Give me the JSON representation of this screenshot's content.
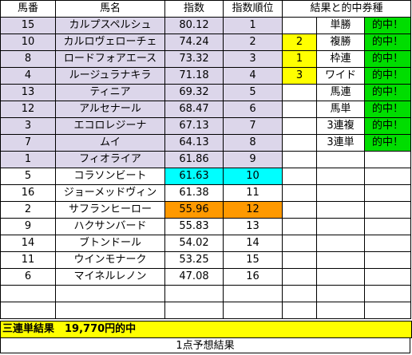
{
  "headers": {
    "uma_ban": "馬番",
    "uma_mei": "馬名",
    "shisu": "指数",
    "shisu_juni": "指数順位",
    "kekka": "結果と的中券種"
  },
  "rows": [
    {
      "ban": "15",
      "name": "カルプスペルシュ",
      "shisu": "80.12",
      "juni": "1"
    },
    {
      "ban": "10",
      "name": "カルロヴェローチェ",
      "shisu": "74.24",
      "juni": "2"
    },
    {
      "ban": "8",
      "name": "ロードフォアエース",
      "shisu": "73.32",
      "juni": "3"
    },
    {
      "ban": "4",
      "name": "ルージュラナキラ",
      "shisu": "71.18",
      "juni": "4"
    },
    {
      "ban": "13",
      "name": "ティニア",
      "shisu": "69.32",
      "juni": "5"
    },
    {
      "ban": "12",
      "name": "アルセナール",
      "shisu": "68.47",
      "juni": "6"
    },
    {
      "ban": "3",
      "name": "エコロレジーナ",
      "shisu": "67.13",
      "juni": "7"
    },
    {
      "ban": "7",
      "name": "ムイ",
      "shisu": "64.13",
      "juni": "8"
    },
    {
      "ban": "1",
      "name": "フィオライア",
      "shisu": "61.86",
      "juni": "9"
    },
    {
      "ban": "5",
      "name": "コラソンビート",
      "shisu": "61.63",
      "juni": "10"
    },
    {
      "ban": "16",
      "name": "ジョーメッドヴィン",
      "shisu": "61.38",
      "juni": "11"
    },
    {
      "ban": "2",
      "name": "サフランヒーロー",
      "shisu": "55.96",
      "juni": "12"
    },
    {
      "ban": "9",
      "name": "ハクサンバード",
      "shisu": "55.83",
      "juni": "13"
    },
    {
      "ban": "14",
      "name": "ブトンドール",
      "shisu": "54.02",
      "juni": "14"
    },
    {
      "ban": "11",
      "name": "ウインモナーク",
      "shisu": "53.25",
      "juni": "15"
    },
    {
      "ban": "6",
      "name": "マイネルレノン",
      "shisu": "47.08",
      "juni": "16"
    }
  ],
  "results": [
    {
      "place": "",
      "type": "単勝",
      "status": "的中！"
    },
    {
      "place": "2",
      "type": "複勝",
      "status": "的中！"
    },
    {
      "place": "1",
      "type": "枠連",
      "status": "的中！"
    },
    {
      "place": "3",
      "type": "ワイド",
      "status": "的中！"
    },
    {
      "place": "",
      "type": "馬連",
      "status": "的中！"
    },
    {
      "place": "",
      "type": "馬単",
      "status": "的中！"
    },
    {
      "place": "",
      "type": "3連複",
      "status": "的中！"
    },
    {
      "place": "",
      "type": "3連単",
      "status": "的中！"
    }
  ],
  "banner": "三連単結果　19,770円的中",
  "footer": "1点予想結果",
  "colors": {
    "lavender": "#dcd6ea",
    "cyan": "#00ffff",
    "orange": "#ff9900",
    "yellow": "#ffff00",
    "green": "#00dd00"
  }
}
